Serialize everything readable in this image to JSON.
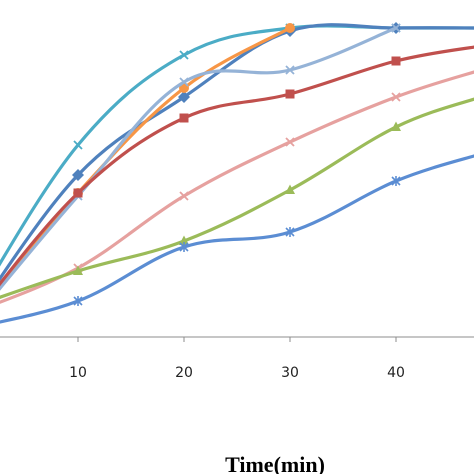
{
  "chart_data": {
    "type": "line",
    "xlabel": "Time(min)",
    "ylabel": "",
    "x_ticks": [
      "10",
      "20",
      "30",
      "40"
    ],
    "xlim": [
      0,
      48
    ],
    "ylim": [
      0,
      100
    ],
    "grid": false,
    "legend": "none",
    "series": [
      {
        "color": "#4BACC6",
        "marker": "x",
        "x": [
          0,
          10,
          20,
          30,
          40,
          48
        ],
        "y": [
          6,
          61,
          91,
          100,
          100,
          100
        ]
      },
      {
        "color": "#4F81BD",
        "marker": "diamond",
        "x": [
          0,
          10,
          20,
          30,
          40,
          48
        ],
        "y": [
          3,
          51,
          77,
          99,
          100,
          100
        ]
      },
      {
        "color": "#F79646",
        "marker": "circle",
        "x": [
          0,
          10,
          20,
          30
        ],
        "y": [
          2,
          45,
          80,
          100
        ]
      },
      {
        "color": "#95B3D7",
        "marker": "x",
        "x": [
          0,
          10,
          20,
          30,
          40
        ],
        "y": [
          2,
          44,
          82,
          86,
          100
        ]
      },
      {
        "color": "#C0504D",
        "marker": "square",
        "x": [
          0,
          10,
          20,
          30,
          40,
          48
        ],
        "y": [
          3,
          45,
          70,
          78,
          89,
          94
        ]
      },
      {
        "color": "#E6A19F",
        "marker": "x",
        "x": [
          0,
          10,
          20,
          30,
          40,
          48
        ],
        "y": [
          5,
          20,
          44,
          62,
          77,
          86
        ]
      },
      {
        "color": "#9BBB59",
        "marker": "triangle",
        "x": [
          0,
          10,
          20,
          30,
          40,
          48
        ],
        "y": [
          7,
          19,
          29,
          46,
          67,
          77
        ]
      },
      {
        "color": "#5B8DD3",
        "marker": "star",
        "x": [
          0,
          10,
          20,
          30,
          40,
          48
        ],
        "y": [
          0,
          9,
          27,
          32,
          49,
          58
        ]
      }
    ]
  }
}
